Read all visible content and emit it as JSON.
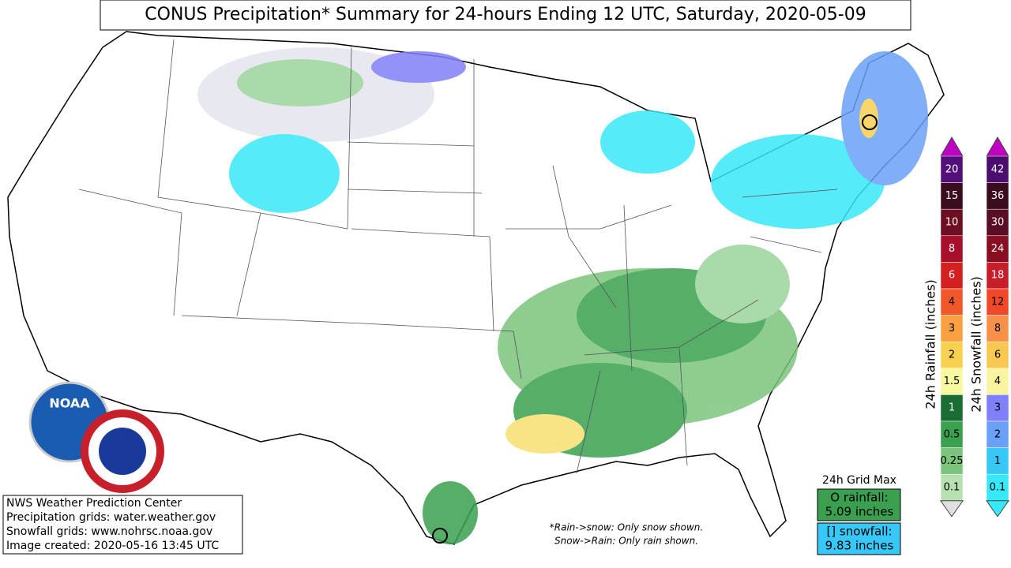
{
  "header": {
    "title": "CONUS Precipitation* Summary for 24-hours Ending 12 UTC, Saturday, 2020-05-09"
  },
  "logos": {
    "noaa": "NOAA"
  },
  "credits": [
    "NWS Weather Prediction Center",
    "Precipitation grids: water.weather.gov",
    "Snowfall grids: www.nohrsc.noaa.gov",
    "Image created: 2020-05-16 13:45 UTC"
  ],
  "notes": [
    "*Rain->snow: Only snow shown.",
    "Snow->Rain: Only rain shown."
  ],
  "grid_max": {
    "title": "24h Grid Max",
    "rainfall": {
      "label": "O rainfall:",
      "value": "5.09 inches",
      "color": "#3aa050"
    },
    "snowfall": {
      "label": "[] snowfall:",
      "value": "9.83 inches",
      "color": "#38c8f8"
    }
  },
  "legends": [
    {
      "label": "24h Rainfall (inches)",
      "top_color": "#c000c0",
      "bottom_color": "#e0e0e0",
      "levels": [
        20,
        15,
        10,
        8,
        6,
        4,
        3,
        2,
        1.5,
        1,
        0.5,
        0.25,
        0.1
      ],
      "colors": [
        "#54107a",
        "#3b0b20",
        "#6e0e22",
        "#a8102a",
        "#d42020",
        "#f0582a",
        "#f8a040",
        "#f8d050",
        "#f8f8a0",
        "#1a6e34",
        "#3aa050",
        "#7cc47c",
        "#b8e0b0"
      ]
    },
    {
      "label": "24h Snowfall (inches)",
      "top_color": "#c000c0",
      "bottom_color": "#38e8f8",
      "levels": [
        42,
        36,
        30,
        24,
        18,
        12,
        8,
        6,
        4,
        3,
        2,
        1,
        0.1
      ],
      "colors": [
        "#4b0e6e",
        "#3b0b20",
        "#5a0e24",
        "#8a0e22",
        "#c81e2a",
        "#f04828",
        "#f8904a",
        "#f8c850",
        "#f8f4a0",
        "#8080f8",
        "#6aa0f8",
        "#38c8f8",
        "#38e8f8"
      ]
    }
  ]
}
